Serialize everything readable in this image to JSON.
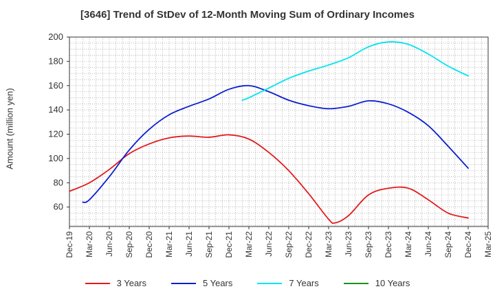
{
  "chart_data": {
    "type": "line",
    "title": "[3646]  Trend of StDev of 12-Month Moving Sum of Ordinary Incomes",
    "ylabel": "Amount (million yen)",
    "xlabel": "",
    "ylim": [
      44,
      200
    ],
    "yticks": [
      60,
      80,
      100,
      120,
      140,
      160,
      180,
      200
    ],
    "xticks": [
      "Dec-19",
      "Mar-20",
      "Jun-20",
      "Sep-20",
      "Dec-20",
      "Mar-21",
      "Jun-21",
      "Sep-21",
      "Dec-21",
      "Mar-22",
      "Jun-22",
      "Sep-22",
      "Dec-22",
      "Mar-23",
      "Jun-23",
      "Sep-23",
      "Dec-23",
      "Mar-24",
      "Jun-24",
      "Sep-24",
      "Dec-24",
      "Mar-25"
    ],
    "grid": true,
    "legend_position": "bottom",
    "series": [
      {
        "name": "3 Years",
        "color": "#e31a1c",
        "points": [
          [
            "Dec-19",
            73
          ],
          [
            "Mar-20",
            80
          ],
          [
            "Jun-20",
            91
          ],
          [
            "Sep-20",
            104
          ],
          [
            "Dec-20",
            112
          ],
          [
            "Mar-21",
            117
          ],
          [
            "Jun-21",
            118.5
          ],
          [
            "Sep-21",
            117.5
          ],
          [
            "Dec-21",
            119.5
          ],
          [
            "Mar-22",
            116
          ],
          [
            "Jun-22",
            105
          ],
          [
            "Sep-22",
            90
          ],
          [
            "Dec-22",
            71
          ],
          [
            "Mar-23",
            50
          ],
          [
            "Apr-23",
            47
          ],
          [
            "Jun-23",
            53
          ],
          [
            "Sep-23",
            70
          ],
          [
            "Dec-23",
            75.5
          ],
          [
            "Mar-24",
            75.5
          ],
          [
            "Jun-24",
            66
          ],
          [
            "Sep-24",
            55
          ],
          [
            "Dec-24",
            51
          ]
        ]
      },
      {
        "name": "5 Years",
        "color": "#0a1ecf",
        "points": [
          [
            "Feb-20",
            64
          ],
          [
            "Mar-20",
            66
          ],
          [
            "Jun-20",
            85
          ],
          [
            "Sep-20",
            107
          ],
          [
            "Dec-20",
            124
          ],
          [
            "Mar-21",
            136
          ],
          [
            "Jun-21",
            143
          ],
          [
            "Sep-21",
            149
          ],
          [
            "Dec-21",
            157
          ],
          [
            "Mar-22",
            160
          ],
          [
            "Jun-22",
            155
          ],
          [
            "Sep-22",
            148
          ],
          [
            "Dec-22",
            143.5
          ],
          [
            "Mar-23",
            141
          ],
          [
            "Jun-23",
            143
          ],
          [
            "Sep-23",
            147.5
          ],
          [
            "Dec-23",
            145
          ],
          [
            "Mar-24",
            138
          ],
          [
            "Jun-24",
            127
          ],
          [
            "Sep-24",
            110
          ],
          [
            "Dec-24",
            92
          ]
        ]
      },
      {
        "name": "7 Years",
        "color": "#00e5ee",
        "points": [
          [
            "Feb-22",
            148
          ],
          [
            "Mar-22",
            150
          ],
          [
            "Jun-22",
            158
          ],
          [
            "Sep-22",
            166
          ],
          [
            "Dec-22",
            172
          ],
          [
            "Mar-23",
            177
          ],
          [
            "Jun-23",
            183
          ],
          [
            "Sep-23",
            192
          ],
          [
            "Dec-23",
            196
          ],
          [
            "Mar-24",
            194
          ],
          [
            "Jun-24",
            186
          ],
          [
            "Sep-24",
            176
          ],
          [
            "Dec-24",
            168
          ]
        ]
      },
      {
        "name": "10 Years",
        "color": "#1a8f1a",
        "points": []
      }
    ]
  }
}
